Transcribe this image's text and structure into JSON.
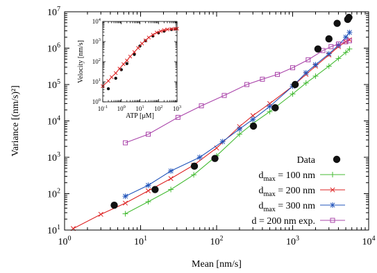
{
  "chart_data": [
    {
      "type": "scatter",
      "xlabel": "Mean [nm/s]",
      "ylabel": "Variance [(nm/s)²]",
      "xscale": "log",
      "yscale": "log",
      "xlim": [
        1,
        10000
      ],
      "ylim": [
        10,
        10000000
      ],
      "x_ticks": [
        {
          "value": 1,
          "base": "10",
          "exp": "0"
        },
        {
          "value": 10,
          "base": "10",
          "exp": "1"
        },
        {
          "value": 100,
          "base": "10",
          "exp": "2"
        },
        {
          "value": 1000,
          "base": "10",
          "exp": "3"
        },
        {
          "value": 10000,
          "base": "10",
          "exp": "4"
        }
      ],
      "y_ticks": [
        {
          "value": 10,
          "base": "10",
          "exp": "1"
        },
        {
          "value": 100,
          "base": "10",
          "exp": "2"
        },
        {
          "value": 1000,
          "base": "10",
          "exp": "3"
        },
        {
          "value": 10000,
          "base": "10",
          "exp": "4"
        },
        {
          "value": 100000,
          "base": "10",
          "exp": "5"
        },
        {
          "value": 1000000,
          "base": "10",
          "exp": "6"
        },
        {
          "value": 10000000,
          "base": "10",
          "exp": "7"
        }
      ],
      "legend_position": "bottom-right",
      "series": [
        {
          "name": "Data",
          "legend_parts": [
            "Data"
          ],
          "style": "dot",
          "color": "#111111",
          "x": [
            4.5,
            15.5,
            51,
            95,
            305,
            590,
            1080,
            2150,
            3000,
            3850,
            5300,
            5500
          ],
          "y": [
            48,
            130,
            570,
            930,
            7200,
            23000,
            100000,
            950000,
            1800000,
            4800000,
            6200000,
            7000000
          ]
        },
        {
          "name": "d_max = 100 nm",
          "legend_parts": [
            "d",
            "max",
            " = 100 nm"
          ],
          "style": "plus",
          "color": "#44bb33",
          "x": [
            6.3,
            12.6,
            25,
            50,
            100,
            200,
            300,
            500,
            1000,
            1500,
            2000,
            3000,
            4000,
            5000,
            5600
          ],
          "y": [
            28,
            60,
            130,
            330,
            1100,
            4300,
            8500,
            18000,
            55000,
            110000,
            170000,
            320000,
            520000,
            760000,
            950000
          ]
        },
        {
          "name": "d_max = 200 nm",
          "legend_parts": [
            "d",
            "max",
            " = 200 nm"
          ],
          "style": "cross",
          "color": "#dd2222",
          "x": [
            1.3,
            3,
            6.3,
            12.6,
            25,
            50,
            100,
            200,
            300,
            500,
            1000,
            1500,
            2000,
            3000,
            4000,
            5000,
            5600
          ],
          "y": [
            11,
            27,
            55,
            120,
            260,
            610,
            1800,
            7000,
            14000,
            30000,
            90000,
            190000,
            320000,
            650000,
            1100000,
            1500000,
            1700000
          ]
        },
        {
          "name": "d_max = 300 nm",
          "legend_parts": [
            "d",
            "max",
            " = 300 nm"
          ],
          "style": "asterisk",
          "color": "#2255bb",
          "x": [
            6.3,
            12.6,
            25,
            60,
            120,
            200,
            300,
            500,
            1000,
            1500,
            2000,
            3000,
            4000,
            5000,
            5600
          ],
          "y": [
            85,
            170,
            420,
            1000,
            2700,
            6000,
            11000,
            25000,
            90000,
            210000,
            350000,
            700000,
            1200000,
            2000000,
            2700000
          ]
        },
        {
          "name": "d = 200 nm exp.",
          "legend_parts": [
            "d = 200 nm exp."
          ],
          "style": "square",
          "color": "#aa44aa",
          "x": [
            6.3,
            12.6,
            31,
            63,
            126,
            250,
            400,
            630,
            1000,
            1600,
            2500,
            3200,
            4000,
            5000,
            5600
          ],
          "y": [
            2500,
            4300,
            12500,
            26000,
            50000,
            100000,
            140000,
            190000,
            290000,
            480000,
            860000,
            1100000,
            1300000,
            1500000,
            1600000
          ]
        }
      ]
    },
    {
      "type": "scatter",
      "xlabel": "ATP [μM]",
      "ylabel": "Velocity [nm/s]",
      "xscale": "log",
      "yscale": "log",
      "xlim": [
        0.1,
        1000
      ],
      "ylim": [
        1,
        10000
      ],
      "x_ticks": [
        {
          "value": 0.1,
          "base": "10",
          "exp": "-1"
        },
        {
          "value": 1,
          "base": "10",
          "exp": "0"
        },
        {
          "value": 10,
          "base": "10",
          "exp": "1"
        },
        {
          "value": 100,
          "base": "10",
          "exp": "2"
        },
        {
          "value": 1000,
          "base": "10",
          "exp": "3"
        }
      ],
      "y_ticks": [
        {
          "value": 1,
          "base": "10",
          "exp": "0"
        },
        {
          "value": 10,
          "base": "10",
          "exp": "1"
        },
        {
          "value": 100,
          "base": "10",
          "exp": "2"
        },
        {
          "value": 1000,
          "base": "10",
          "exp": "3"
        },
        {
          "value": 10000,
          "base": "10",
          "exp": "4"
        }
      ],
      "series": [
        {
          "style": "dot-small",
          "color": "#111111",
          "x": [
            0.2,
            0.5,
            1,
            2,
            5,
            10,
            20,
            50,
            100,
            200,
            500,
            800
          ],
          "y": [
            4.5,
            15,
            40,
            80,
            230,
            600,
            1100,
            1900,
            2700,
            3300,
            4000,
            4200
          ]
        },
        {
          "style": "cross-line",
          "color": "#dd2222",
          "x": [
            0.1,
            0.2,
            0.3,
            0.5,
            0.8,
            1.3,
            2,
            3,
            5,
            8,
            13,
            20,
            30,
            50,
            80,
            130,
            200,
            300,
            500,
            800,
            1000
          ],
          "y": [
            6,
            11,
            17,
            27,
            45,
            75,
            115,
            180,
            300,
            480,
            800,
            1150,
            1600,
            2200,
            2800,
            3300,
            3700,
            4000,
            4200,
            4350,
            4400
          ]
        }
      ]
    }
  ]
}
